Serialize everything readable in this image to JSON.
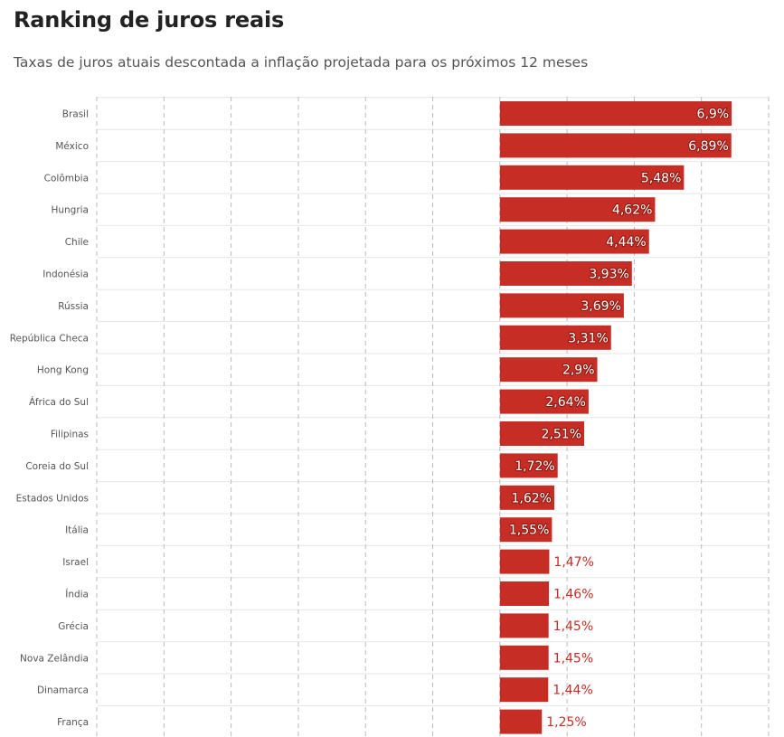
{
  "title": "Ranking de juros reais",
  "subtitle": "Taxas de juros atuais descontada a inflação projetada para os próximos 12 meses",
  "colors": {
    "bar": "#c62d25",
    "grid": "#bbbbbb",
    "row_line": "#e6e6e6",
    "label_outside": "#c62d25"
  },
  "chart_data": {
    "type": "bar",
    "orientation": "horizontal",
    "categories": [
      "Brasil",
      "México",
      "Colômbia",
      "Hungria",
      "Chile",
      "Indonésia",
      "Rússia",
      "República Checa",
      "Hong Kong",
      "África do Sul",
      "Filipinas",
      "Coreia do Sul",
      "Estados Unidos",
      "Itália",
      "Israel",
      "Índia",
      "Grécia",
      "Nova Zelândia",
      "Dinamarca",
      "França"
    ],
    "values": [
      6.9,
      6.89,
      5.48,
      4.62,
      4.44,
      3.93,
      3.69,
      3.31,
      2.9,
      2.64,
      2.51,
      1.72,
      1.62,
      1.55,
      1.47,
      1.46,
      1.45,
      1.45,
      1.44,
      1.25
    ],
    "labels": [
      "6,9%",
      "6,89%",
      "5,48%",
      "4,62%",
      "4,44%",
      "3,93%",
      "3,69%",
      "3,31%",
      "2,9%",
      "2,64%",
      "2,51%",
      "1,72%",
      "1,62%",
      "1,55%",
      "1,47%",
      "1,46%",
      "1,45%",
      "1,45%",
      "1,44%",
      "1,25%"
    ],
    "xlim": [
      -12,
      8
    ],
    "x_grid_step": 2,
    "grid": true,
    "legend": "none"
  }
}
